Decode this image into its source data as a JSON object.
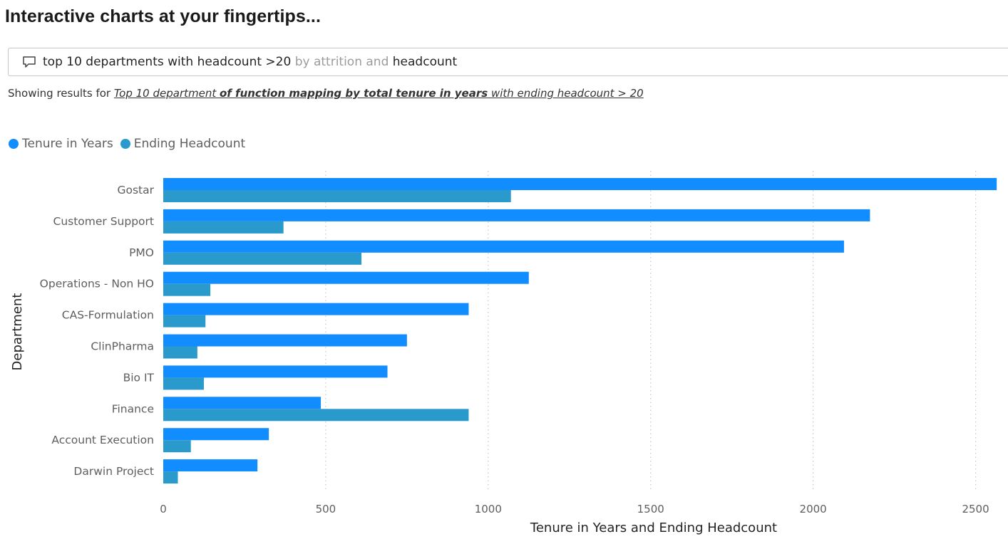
{
  "page": {
    "title": "Interactive charts at your fingertips..."
  },
  "qa": {
    "icon": "speech-bubble-icon",
    "query_parts": [
      {
        "text": "top 10 departments with headcount >20",
        "style": "strong"
      },
      {
        "text": " by attrition and ",
        "style": "muted"
      },
      {
        "text": "headcount",
        "style": "strong"
      }
    ]
  },
  "results": {
    "prefix": "Showing results for ",
    "interpretation": [
      {
        "text": "Top 10 department ",
        "bold": false
      },
      {
        "text": "of function mapping by total tenure in years",
        "bold": true
      },
      {
        "text": " with ending headcount > 20",
        "bold": false
      }
    ]
  },
  "chart_data": {
    "type": "bar",
    "orientation": "horizontal",
    "categories": [
      "Gostar",
      "Customer Support",
      "PMO",
      "Operations - Non HO",
      "CAS-Formulation",
      "ClinPharma",
      "Bio IT",
      "Finance",
      "Account Execution",
      "Darwin Project"
    ],
    "series": [
      {
        "name": "Tenure in Years",
        "color": "#118dff",
        "values": [
          2565,
          2175,
          2095,
          1125,
          940,
          750,
          690,
          485,
          325,
          290
        ]
      },
      {
        "name": "Ending Headcount",
        "color": "#2a9acd",
        "values": [
          1070,
          370,
          610,
          145,
          130,
          105,
          125,
          940,
          85,
          45
        ]
      }
    ],
    "xlabel": "Tenure in Years and Ending Headcount",
    "ylabel": "Department",
    "xlim": [
      0,
      2580
    ],
    "xticks": [
      0,
      500,
      1000,
      1500,
      2000,
      2500
    ],
    "grid": "vertical-dotted",
    "legend_position": "top-left"
  }
}
